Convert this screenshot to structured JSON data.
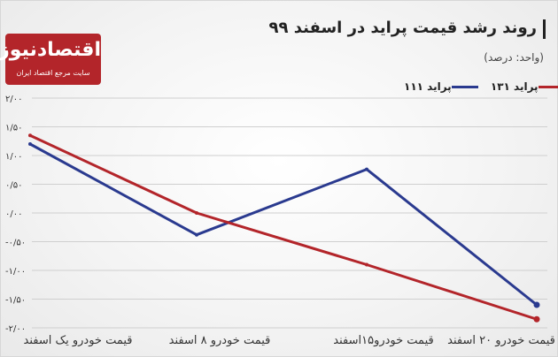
{
  "header": {
    "title": "روند رشد قیمت پراید در اسفند ۹۹",
    "subtitle": "(واحد: درصد)"
  },
  "logo": {
    "name": "اقتصادنیوز",
    "tagline": "سایت مرجع اقتصاد ایران"
  },
  "colors": {
    "background": "#ffffff",
    "red_series": "#b3252a",
    "blue_series": "#2a3a8f",
    "grid": "#cfcfcf",
    "accent": "#b3252a"
  },
  "chart_data": {
    "type": "line",
    "categories": [
      "قیمت خودرو یک اسفند",
      "قیمت خودرو ۸ اسفند",
      "قیمت خودرو۱۵اسفند",
      "قیمت خودرو ۲۰ اسفند"
    ],
    "series": [
      {
        "name": "پراید ۱۳۱",
        "color": "#b3252a",
        "values": [
          1.35,
          0.0,
          -0.9,
          -1.85
        ]
      },
      {
        "name": "پراید ۱۱۱",
        "color": "#2a3a8f",
        "values": [
          1.2,
          -0.38,
          0.76,
          -1.6
        ]
      }
    ],
    "ylim": [
      -2.0,
      2.0
    ],
    "yticks": [
      2.0,
      1.5,
      1.0,
      0.5,
      0.0,
      -0.5,
      -1.0,
      -1.5,
      -2.0
    ],
    "ytick_labels": [
      "۲/۰۰",
      "۱/۵۰",
      "۱/۰۰",
      "۰/۵۰",
      "۰/۰۰",
      "-۰/۵۰",
      "-۱/۰۰",
      "-۱/۵۰",
      "-۲/۰۰"
    ],
    "grid": true,
    "legend": "top-right"
  }
}
